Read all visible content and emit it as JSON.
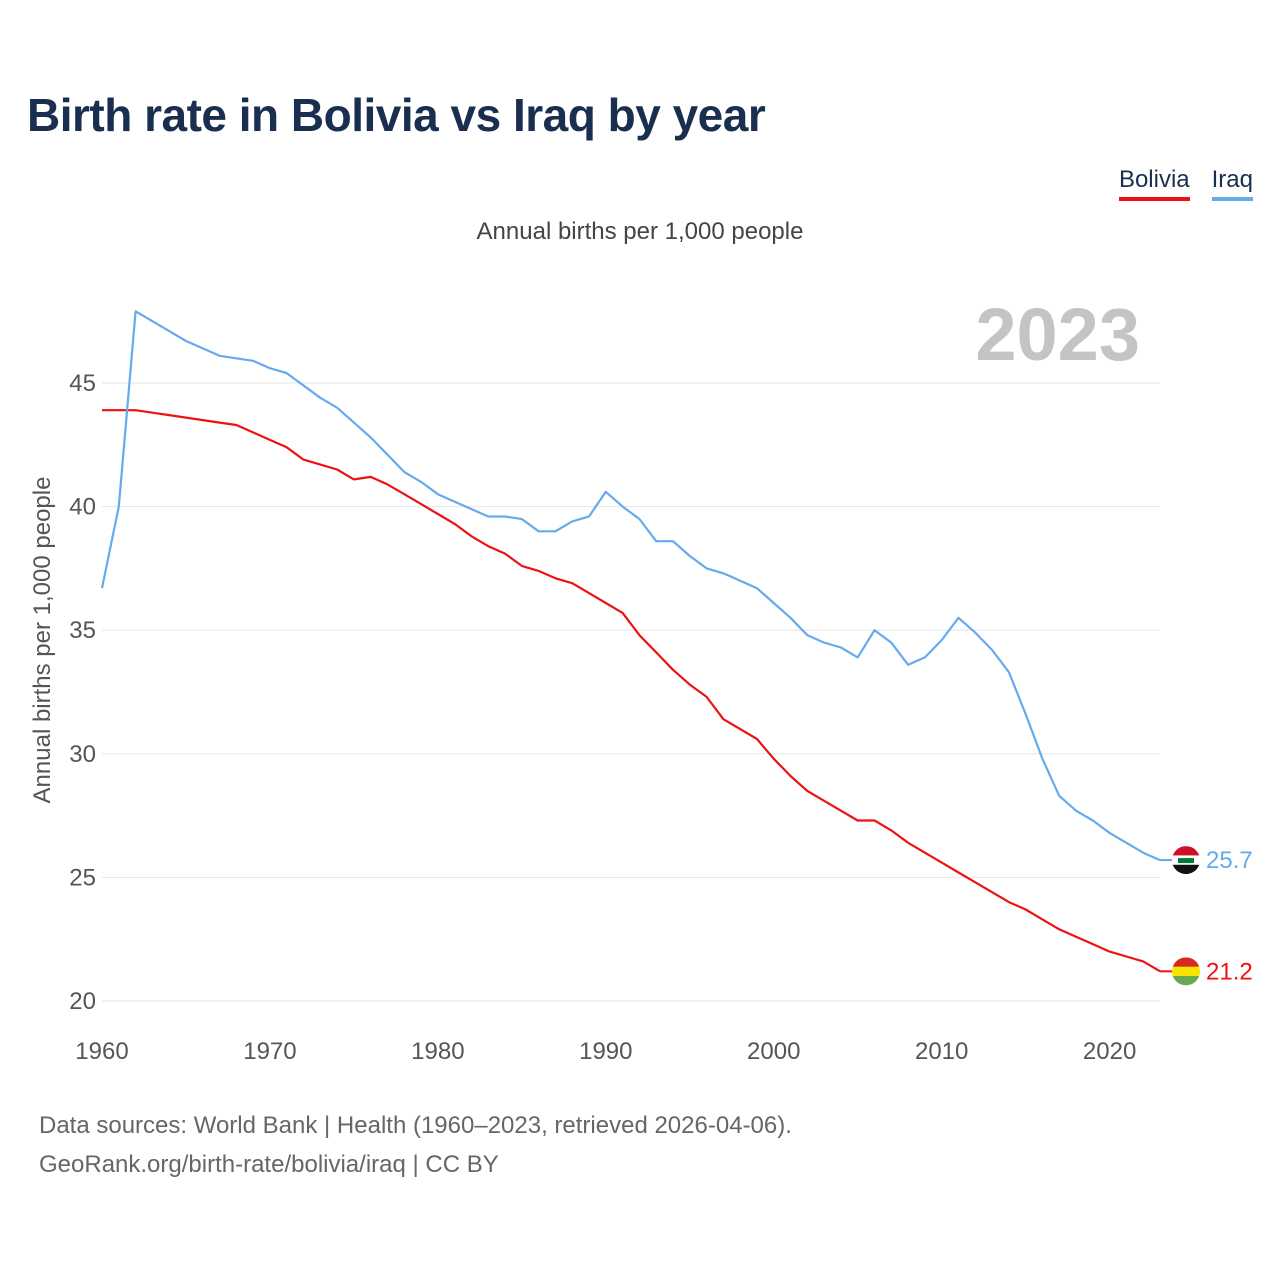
{
  "title": "Birth rate in Bolivia vs Iraq by year",
  "subtitle": "Annual births per 1,000 people",
  "year_watermark": "2023",
  "legend": [
    {
      "label": "Bolivia",
      "color": "#ee1111"
    },
    {
      "label": "Iraq",
      "color": "#66aaee"
    }
  ],
  "footer": {
    "line1": "Data sources: World Bank | Health (1960–2023, retrieved 2026-04-06).",
    "line2": "GeoRank.org/birth-rate/bolivia/iraq | CC BY"
  },
  "chart_data": {
    "type": "line",
    "title": "Birth rate in Bolivia vs Iraq by year",
    "ylabel": "Annual births per 1,000 people",
    "xlabel": "",
    "xlim": [
      1960,
      2023
    ],
    "ylim": [
      20,
      48.5
    ],
    "x_ticks": [
      1960,
      1970,
      1980,
      1990,
      2000,
      2010,
      2020
    ],
    "y_ticks": [
      20,
      25,
      30,
      35,
      40,
      45
    ],
    "grid": true,
    "legend_position": "top-right",
    "x": [
      1960,
      1961,
      1962,
      1963,
      1964,
      1965,
      1966,
      1967,
      1968,
      1969,
      1970,
      1971,
      1972,
      1973,
      1974,
      1975,
      1976,
      1977,
      1978,
      1979,
      1980,
      1981,
      1982,
      1983,
      1984,
      1985,
      1986,
      1987,
      1988,
      1989,
      1990,
      1991,
      1992,
      1993,
      1994,
      1995,
      1996,
      1997,
      1998,
      1999,
      2000,
      2001,
      2002,
      2003,
      2004,
      2005,
      2006,
      2007,
      2008,
      2009,
      2010,
      2011,
      2012,
      2013,
      2014,
      2015,
      2016,
      2017,
      2018,
      2019,
      2020,
      2021,
      2022,
      2023
    ],
    "series": [
      {
        "name": "Bolivia",
        "color": "#ee1111",
        "end_label": "21.2",
        "values": [
          43.9,
          43.9,
          43.9,
          43.8,
          43.7,
          43.6,
          43.5,
          43.4,
          43.3,
          43.0,
          42.7,
          42.4,
          41.9,
          41.7,
          41.5,
          41.1,
          41.2,
          40.9,
          40.5,
          40.1,
          39.7,
          39.3,
          38.8,
          38.4,
          38.1,
          37.6,
          37.4,
          37.1,
          36.9,
          36.5,
          36.1,
          35.7,
          34.8,
          34.1,
          33.4,
          32.8,
          32.3,
          31.4,
          31.0,
          30.6,
          29.8,
          29.1,
          28.5,
          28.1,
          27.7,
          27.3,
          27.3,
          26.9,
          26.4,
          26.0,
          25.6,
          25.2,
          24.8,
          24.4,
          24.0,
          23.7,
          23.3,
          22.9,
          22.6,
          22.3,
          22.0,
          21.8,
          21.6,
          21.2
        ]
      },
      {
        "name": "Iraq",
        "color": "#66aaee",
        "end_label": "25.7",
        "values": [
          36.7,
          40.0,
          47.9,
          47.5,
          47.1,
          46.7,
          46.4,
          46.1,
          46.0,
          45.9,
          45.6,
          45.4,
          44.9,
          44.4,
          44.0,
          43.4,
          42.8,
          42.1,
          41.4,
          41.0,
          40.5,
          40.2,
          39.9,
          39.6,
          39.6,
          39.5,
          39.0,
          39.0,
          39.4,
          39.6,
          40.6,
          40.0,
          39.5,
          38.6,
          38.6,
          38.0,
          37.5,
          37.3,
          37.0,
          36.7,
          36.1,
          35.5,
          34.8,
          34.5,
          34.3,
          33.9,
          35.0,
          34.5,
          33.6,
          33.9,
          34.6,
          35.5,
          34.9,
          34.2,
          33.3,
          31.6,
          29.8,
          28.3,
          27.7,
          27.3,
          26.8,
          26.4,
          26.0,
          25.7
        ]
      }
    ]
  }
}
